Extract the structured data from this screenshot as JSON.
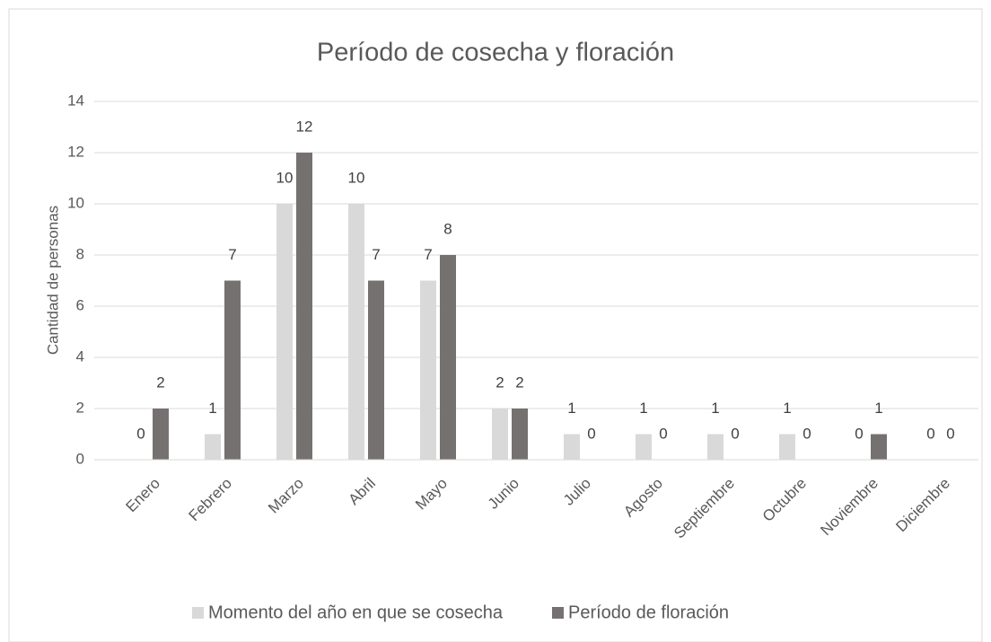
{
  "chart_data": {
    "type": "bar",
    "title": "Período de cosecha y floración",
    "y_label": "Cantidad de personas",
    "categories": [
      "Enero",
      "Febrero",
      "Marzo",
      "Abril",
      "Mayo",
      "Junio",
      "Julio",
      "Agosto",
      "Septiembre",
      "Octubre",
      "Noviembre",
      "Diciembre"
    ],
    "series": [
      {
        "name": "Momento del año en que se cosecha",
        "color": "#d9d9d9",
        "values": [
          0,
          1,
          10,
          10,
          7,
          2,
          1,
          1,
          1,
          1,
          0,
          0
        ]
      },
      {
        "name": "Período de floración",
        "color": "#767171",
        "values": [
          2,
          7,
          12,
          7,
          8,
          2,
          0,
          0,
          0,
          0,
          1,
          0
        ]
      }
    ],
    "ylim": [
      0,
      14
    ],
    "yticks": [
      0,
      2,
      4,
      6,
      8,
      10,
      12,
      14
    ],
    "grid": true,
    "legend": "bottom"
  }
}
